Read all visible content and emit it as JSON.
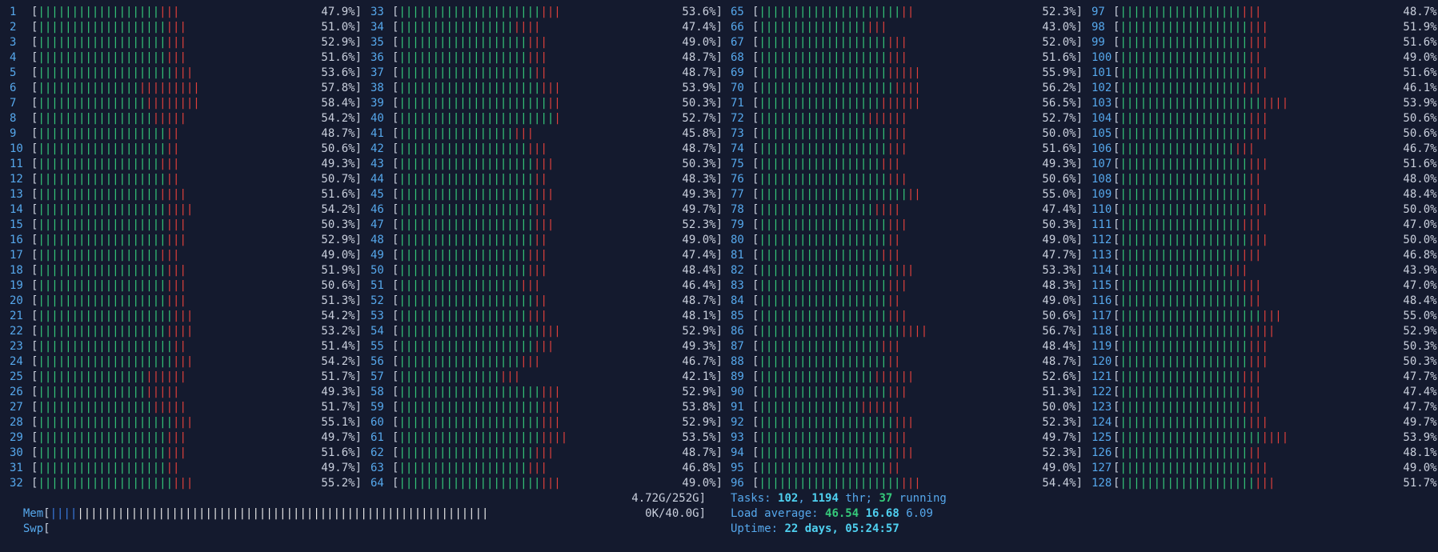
{
  "colors": {
    "background": "#141a2e",
    "cpu_number": "#56a8ec",
    "bar_normal": "#35c97a",
    "bar_system": "#e0403c",
    "value_text": "#c9cfdc",
    "mem_used": "#3a7be0",
    "mem_cache": "#e6e6e6",
    "highlight": "#4fd0f0",
    "running": "#35c97a"
  },
  "cpus": [
    {
      "id": "1",
      "pct": "47.9%]",
      "green": 18,
      "red": 3
    },
    {
      "id": "2",
      "pct": "51.0%]",
      "green": 19,
      "red": 3
    },
    {
      "id": "3",
      "pct": "52.9%]",
      "green": 19,
      "red": 3
    },
    {
      "id": "4",
      "pct": "51.6%]",
      "green": 19,
      "red": 3
    },
    {
      "id": "5",
      "pct": "53.6%]",
      "green": 20,
      "red": 3
    },
    {
      "id": "6",
      "pct": "57.8%]",
      "green": 15,
      "red": 9
    },
    {
      "id": "7",
      "pct": "58.4%]",
      "green": 16,
      "red": 8
    },
    {
      "id": "8",
      "pct": "54.2%]",
      "green": 17,
      "red": 5
    },
    {
      "id": "9",
      "pct": "48.7%]",
      "green": 19,
      "red": 2
    },
    {
      "id": "10",
      "pct": "50.6%]",
      "green": 19,
      "red": 2
    },
    {
      "id": "11",
      "pct": "49.3%]",
      "green": 18,
      "red": 3
    },
    {
      "id": "12",
      "pct": "50.7%]",
      "green": 19,
      "red": 2
    },
    {
      "id": "13",
      "pct": "51.6%]",
      "green": 18,
      "red": 4
    },
    {
      "id": "14",
      "pct": "54.2%]",
      "green": 19,
      "red": 4
    },
    {
      "id": "15",
      "pct": "50.3%]",
      "green": 19,
      "red": 3
    },
    {
      "id": "16",
      "pct": "52.9%]",
      "green": 19,
      "red": 3
    },
    {
      "id": "17",
      "pct": "49.0%]",
      "green": 18,
      "red": 3
    },
    {
      "id": "18",
      "pct": "51.9%]",
      "green": 19,
      "red": 3
    },
    {
      "id": "19",
      "pct": "50.6%]",
      "green": 19,
      "red": 3
    },
    {
      "id": "20",
      "pct": "51.3%]",
      "green": 19,
      "red": 3
    },
    {
      "id": "21",
      "pct": "54.2%]",
      "green": 20,
      "red": 3
    },
    {
      "id": "22",
      "pct": "53.2%]",
      "green": 19,
      "red": 4
    },
    {
      "id": "23",
      "pct": "51.4%]",
      "green": 20,
      "red": 2
    },
    {
      "id": "24",
      "pct": "54.2%]",
      "green": 20,
      "red": 3
    },
    {
      "id": "25",
      "pct": "51.7%]",
      "green": 16,
      "red": 6
    },
    {
      "id": "26",
      "pct": "49.3%]",
      "green": 16,
      "red": 5
    },
    {
      "id": "27",
      "pct": "51.7%]",
      "green": 17,
      "red": 5
    },
    {
      "id": "28",
      "pct": "55.1%]",
      "green": 20,
      "red": 3
    },
    {
      "id": "29",
      "pct": "49.7%]",
      "green": 19,
      "red": 3
    },
    {
      "id": "30",
      "pct": "51.6%]",
      "green": 19,
      "red": 3
    },
    {
      "id": "31",
      "pct": "49.7%]",
      "green": 19,
      "red": 2
    },
    {
      "id": "32",
      "pct": "55.2%]",
      "green": 20,
      "red": 3
    },
    {
      "id": "33",
      "pct": "53.6%]",
      "green": 21,
      "red": 3
    },
    {
      "id": "34",
      "pct": "47.4%]",
      "green": 17,
      "red": 4
    },
    {
      "id": "35",
      "pct": "49.0%]",
      "green": 19,
      "red": 3
    },
    {
      "id": "36",
      "pct": "48.7%]",
      "green": 19,
      "red": 3
    },
    {
      "id": "37",
      "pct": "48.7%]",
      "green": 20,
      "red": 2
    },
    {
      "id": "38",
      "pct": "53.9%]",
      "green": 21,
      "red": 3
    },
    {
      "id": "39",
      "pct": "50.3%]",
      "green": 22,
      "red": 2
    },
    {
      "id": "40",
      "pct": "52.7%]",
      "green": 23,
      "red": 1
    },
    {
      "id": "41",
      "pct": "45.8%]",
      "green": 17,
      "red": 3
    },
    {
      "id": "42",
      "pct": "48.7%]",
      "green": 19,
      "red": 3
    },
    {
      "id": "43",
      "pct": "50.3%]",
      "green": 20,
      "red": 3
    },
    {
      "id": "44",
      "pct": "48.3%]",
      "green": 20,
      "red": 2
    },
    {
      "id": "45",
      "pct": "49.3%]",
      "green": 20,
      "red": 3
    },
    {
      "id": "46",
      "pct": "49.7%]",
      "green": 20,
      "red": 2
    },
    {
      "id": "47",
      "pct": "52.3%]",
      "green": 20,
      "red": 3
    },
    {
      "id": "48",
      "pct": "49.0%]",
      "green": 20,
      "red": 2
    },
    {
      "id": "49",
      "pct": "47.4%]",
      "green": 19,
      "red": 3
    },
    {
      "id": "50",
      "pct": "48.4%]",
      "green": 19,
      "red": 3
    },
    {
      "id": "51",
      "pct": "46.4%]",
      "green": 18,
      "red": 3
    },
    {
      "id": "52",
      "pct": "48.7%]",
      "green": 20,
      "red": 2
    },
    {
      "id": "53",
      "pct": "48.1%]",
      "green": 19,
      "red": 3
    },
    {
      "id": "54",
      "pct": "52.9%]",
      "green": 21,
      "red": 3
    },
    {
      "id": "55",
      "pct": "49.3%]",
      "green": 20,
      "red": 3
    },
    {
      "id": "56",
      "pct": "46.7%]",
      "green": 18,
      "red": 3
    },
    {
      "id": "57",
      "pct": "42.1%]",
      "green": 15,
      "red": 3
    },
    {
      "id": "58",
      "pct": "52.9%]",
      "green": 21,
      "red": 3
    },
    {
      "id": "59",
      "pct": "53.8%]",
      "green": 21,
      "red": 3
    },
    {
      "id": "60",
      "pct": "52.9%]",
      "green": 21,
      "red": 3
    },
    {
      "id": "61",
      "pct": "53.5%]",
      "green": 21,
      "red": 4
    },
    {
      "id": "62",
      "pct": "48.7%]",
      "green": 20,
      "red": 3
    },
    {
      "id": "63",
      "pct": "46.8%]",
      "green": 19,
      "red": 3
    },
    {
      "id": "64",
      "pct": "49.0%]",
      "green": 21,
      "red": 3
    },
    {
      "id": "65",
      "pct": "52.3%]",
      "green": 21,
      "red": 2
    },
    {
      "id": "66",
      "pct": "43.0%]",
      "green": 16,
      "red": 3
    },
    {
      "id": "67",
      "pct": "52.0%]",
      "green": 19,
      "red": 3
    },
    {
      "id": "68",
      "pct": "51.6%]",
      "green": 19,
      "red": 3
    },
    {
      "id": "69",
      "pct": "55.9%]",
      "green": 19,
      "red": 5
    },
    {
      "id": "70",
      "pct": "56.2%]",
      "green": 20,
      "red": 4
    },
    {
      "id": "71",
      "pct": "56.5%]",
      "green": 18,
      "red": 6
    },
    {
      "id": "72",
      "pct": "52.7%]",
      "green": 16,
      "red": 6
    },
    {
      "id": "73",
      "pct": "50.0%]",
      "green": 19,
      "red": 3
    },
    {
      "id": "74",
      "pct": "51.6%]",
      "green": 19,
      "red": 3
    },
    {
      "id": "75",
      "pct": "49.3%]",
      "green": 18,
      "red": 3
    },
    {
      "id": "76",
      "pct": "50.6%]",
      "green": 19,
      "red": 3
    },
    {
      "id": "77",
      "pct": "55.0%]",
      "green": 22,
      "red": 2
    },
    {
      "id": "78",
      "pct": "47.4%]",
      "green": 17,
      "red": 4
    },
    {
      "id": "79",
      "pct": "50.3%]",
      "green": 19,
      "red": 3
    },
    {
      "id": "80",
      "pct": "49.0%]",
      "green": 19,
      "red": 2
    },
    {
      "id": "81",
      "pct": "47.7%]",
      "green": 18,
      "red": 3
    },
    {
      "id": "82",
      "pct": "53.3%]",
      "green": 20,
      "red": 3
    },
    {
      "id": "83",
      "pct": "48.3%]",
      "green": 19,
      "red": 3
    },
    {
      "id": "84",
      "pct": "49.0%]",
      "green": 19,
      "red": 2
    },
    {
      "id": "85",
      "pct": "50.6%]",
      "green": 19,
      "red": 3
    },
    {
      "id": "86",
      "pct": "56.7%]",
      "green": 21,
      "red": 4
    },
    {
      "id": "87",
      "pct": "48.4%]",
      "green": 18,
      "red": 3
    },
    {
      "id": "88",
      "pct": "48.7%]",
      "green": 19,
      "red": 2
    },
    {
      "id": "89",
      "pct": "52.6%]",
      "green": 17,
      "red": 6
    },
    {
      "id": "90",
      "pct": "51.3%]",
      "green": 19,
      "red": 3
    },
    {
      "id": "91",
      "pct": "50.0%]",
      "green": 15,
      "red": 6
    },
    {
      "id": "92",
      "pct": "52.3%]",
      "green": 20,
      "red": 3
    },
    {
      "id": "93",
      "pct": "49.7%]",
      "green": 19,
      "red": 3
    },
    {
      "id": "94",
      "pct": "52.3%]",
      "green": 20,
      "red": 3
    },
    {
      "id": "95",
      "pct": "49.0%]",
      "green": 19,
      "red": 2
    },
    {
      "id": "96",
      "pct": "54.4%]",
      "green": 21,
      "red": 3
    },
    {
      "id": "97",
      "pct": "48.7%]",
      "green": 18,
      "red": 3
    },
    {
      "id": "98",
      "pct": "51.9%]",
      "green": 19,
      "red": 3
    },
    {
      "id": "99",
      "pct": "51.6%]",
      "green": 19,
      "red": 3
    },
    {
      "id": "100",
      "pct": "49.0%]",
      "green": 19,
      "red": 2
    },
    {
      "id": "101",
      "pct": "51.6%]",
      "green": 19,
      "red": 3
    },
    {
      "id": "102",
      "pct": "46.1%]",
      "green": 18,
      "red": 3
    },
    {
      "id": "103",
      "pct": "53.9%]",
      "green": 21,
      "red": 4
    },
    {
      "id": "104",
      "pct": "50.6%]",
      "green": 19,
      "red": 3
    },
    {
      "id": "105",
      "pct": "50.6%]",
      "green": 19,
      "red": 3
    },
    {
      "id": "106",
      "pct": "46.7%]",
      "green": 17,
      "red": 3
    },
    {
      "id": "107",
      "pct": "51.6%]",
      "green": 19,
      "red": 3
    },
    {
      "id": "108",
      "pct": "48.0%]",
      "green": 19,
      "red": 2
    },
    {
      "id": "109",
      "pct": "48.4%]",
      "green": 19,
      "red": 2
    },
    {
      "id": "110",
      "pct": "50.0%]",
      "green": 19,
      "red": 3
    },
    {
      "id": "111",
      "pct": "47.0%]",
      "green": 18,
      "red": 3
    },
    {
      "id": "112",
      "pct": "50.0%]",
      "green": 19,
      "red": 3
    },
    {
      "id": "113",
      "pct": "46.8%]",
      "green": 18,
      "red": 3
    },
    {
      "id": "114",
      "pct": "43.9%]",
      "green": 16,
      "red": 3
    },
    {
      "id": "115",
      "pct": "47.0%]",
      "green": 18,
      "red": 3
    },
    {
      "id": "116",
      "pct": "48.4%]",
      "green": 19,
      "red": 2
    },
    {
      "id": "117",
      "pct": "55.0%]",
      "green": 21,
      "red": 3
    },
    {
      "id": "118",
      "pct": "52.9%]",
      "green": 19,
      "red": 4
    },
    {
      "id": "119",
      "pct": "50.3%]",
      "green": 19,
      "red": 3
    },
    {
      "id": "120",
      "pct": "50.3%]",
      "green": 19,
      "red": 3
    },
    {
      "id": "121",
      "pct": "47.7%]",
      "green": 18,
      "red": 3
    },
    {
      "id": "122",
      "pct": "47.4%]",
      "green": 18,
      "red": 3
    },
    {
      "id": "123",
      "pct": "47.7%]",
      "green": 18,
      "red": 3
    },
    {
      "id": "124",
      "pct": "49.7%]",
      "green": 19,
      "red": 3
    },
    {
      "id": "125",
      "pct": "53.9%]",
      "green": 21,
      "red": 4
    },
    {
      "id": "126",
      "pct": "48.1%]",
      "green": 19,
      "red": 2
    },
    {
      "id": "127",
      "pct": "49.0%]",
      "green": 19,
      "red": 3
    },
    {
      "id": "128",
      "pct": "51.7%]",
      "green": 20,
      "red": 3
    }
  ],
  "mem": {
    "label": "Mem",
    "value": "4.72G/252G]",
    "used_bars": 4,
    "cache_bars": 61
  },
  "swp": {
    "label": "Swp",
    "value": "0K/40.0G]"
  },
  "tasks": {
    "label": "Tasks:",
    "count": "102",
    "sep": ",",
    "threads": "1194",
    "thr_label": "thr;",
    "running": "37",
    "running_label": "running"
  },
  "load": {
    "label": "Load average:",
    "one": "46.54",
    "five": "16.68",
    "fifteen": "6.09"
  },
  "uptime": {
    "label": "Uptime:",
    "value": "22 days, 05:24:57"
  }
}
